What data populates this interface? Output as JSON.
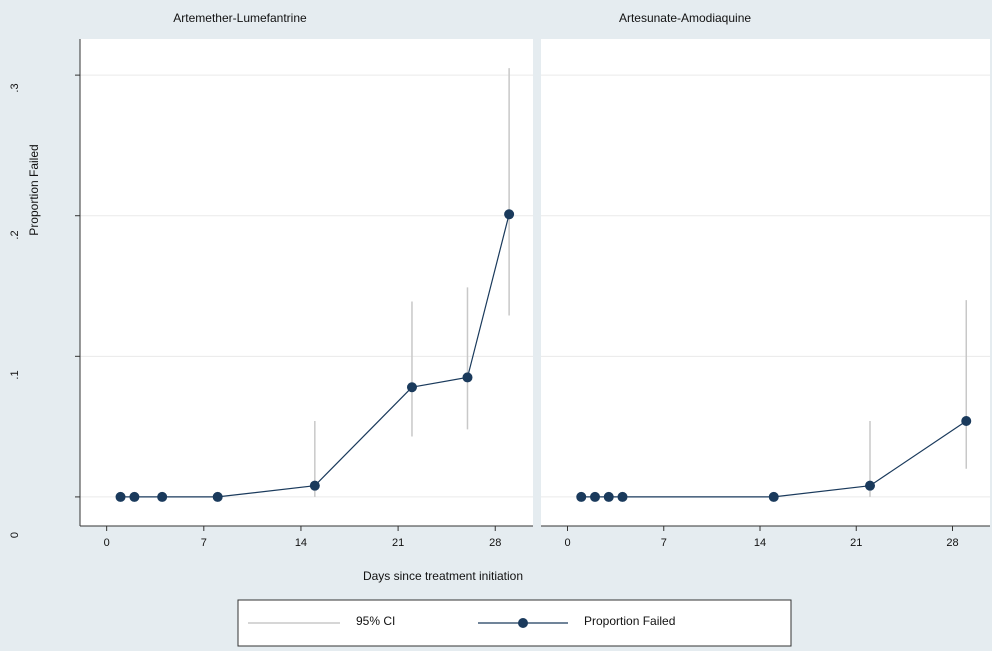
{
  "chart_data": {
    "type": "line",
    "ylabel": "Proportion Failed",
    "xlabel": "Days since treatment initiation",
    "y_ticks": [
      {
        "value": 0,
        "label": "0"
      },
      {
        "value": 0.1,
        "label": ".1"
      },
      {
        "value": 0.2,
        "label": ".2"
      },
      {
        "value": 0.3,
        "label": ".3"
      }
    ],
    "x_ticks": [
      {
        "value": 0,
        "label": "0"
      },
      {
        "value": 7,
        "label": "7"
      },
      {
        "value": 14,
        "label": "14"
      },
      {
        "value": 21,
        "label": "21"
      },
      {
        "value": 28,
        "label": "28"
      }
    ],
    "xlim": [
      -1.2,
      30
    ],
    "ylim": [
      -0.015,
      0.32
    ],
    "grid": true,
    "legend": {
      "position": "bottom-center",
      "entries": [
        {
          "label": "95% CI",
          "style": "ci-line"
        },
        {
          "label": "Proportion Failed",
          "style": "marker-line"
        }
      ]
    },
    "colors": {
      "line": "#1a3a5c",
      "marker": "#1a3a5c",
      "ci": "#c8c8c8",
      "panel_bg": "#ffffff",
      "outer_bg": "#e5ecf0",
      "header_bg": "#e5ecf0",
      "grid": "#eaeaea"
    },
    "panels": [
      {
        "title": "Artemether-Lumefantrine",
        "points": [
          {
            "x": 1,
            "y": 0.0,
            "ci_low": null,
            "ci_high": null
          },
          {
            "x": 2,
            "y": 0.0,
            "ci_low": null,
            "ci_high": null
          },
          {
            "x": 4,
            "y": 0.0,
            "ci_low": null,
            "ci_high": null
          },
          {
            "x": 8,
            "y": 0.0,
            "ci_low": null,
            "ci_high": null
          },
          {
            "x": 15,
            "y": 0.008,
            "ci_low": 0.0,
            "ci_high": 0.054
          },
          {
            "x": 22,
            "y": 0.078,
            "ci_low": 0.043,
            "ci_high": 0.139
          },
          {
            "x": 26,
            "y": 0.085,
            "ci_low": 0.048,
            "ci_high": 0.149
          },
          {
            "x": 29,
            "y": 0.201,
            "ci_low": 0.129,
            "ci_high": 0.305
          }
        ]
      },
      {
        "title": "Artesunate-Amodiaquine",
        "points": [
          {
            "x": 1,
            "y": 0.0,
            "ci_low": null,
            "ci_high": null
          },
          {
            "x": 2,
            "y": 0.0,
            "ci_low": null,
            "ci_high": null
          },
          {
            "x": 3,
            "y": 0.0,
            "ci_low": null,
            "ci_high": null
          },
          {
            "x": 4,
            "y": 0.0,
            "ci_low": null,
            "ci_high": null
          },
          {
            "x": 15,
            "y": 0.0,
            "ci_low": null,
            "ci_high": null
          },
          {
            "x": 22,
            "y": 0.008,
            "ci_low": 0.0,
            "ci_high": 0.054
          },
          {
            "x": 29,
            "y": 0.054,
            "ci_low": 0.02,
            "ci_high": 0.14
          }
        ]
      }
    ]
  }
}
